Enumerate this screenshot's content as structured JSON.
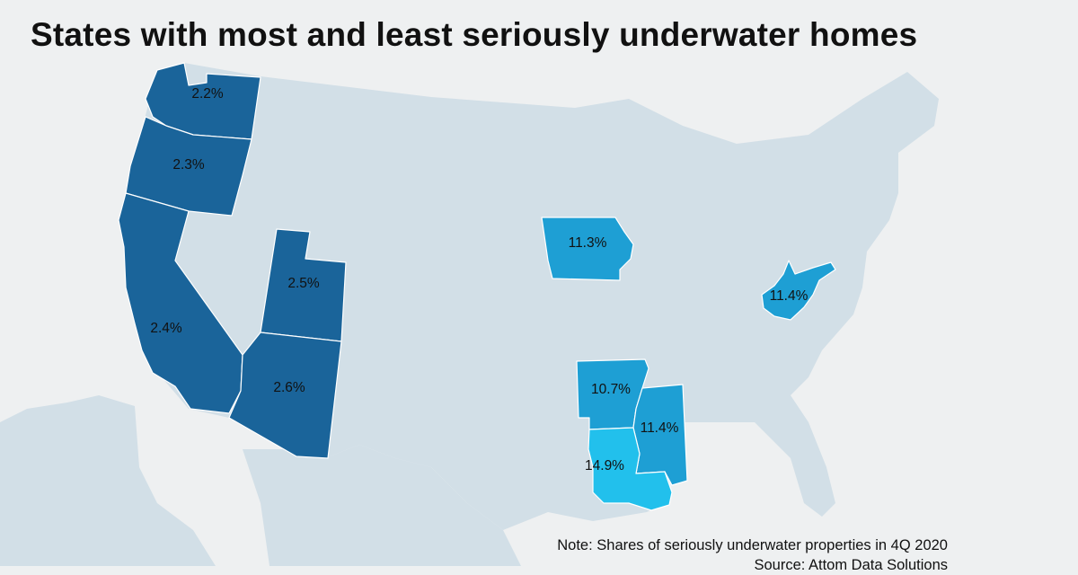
{
  "title": "States with most and least seriously underwater homes",
  "colors": {
    "background": "#eef0f1",
    "base_states": "#d2dfe7",
    "least_underwater": "#1a649a",
    "most_underwater": "#1e9fd4",
    "highest": "#22c0ec",
    "borders": "#ffffff"
  },
  "states": [
    {
      "name": "Washington",
      "value": "2.2%",
      "group": "least"
    },
    {
      "name": "Oregon",
      "value": "2.3%",
      "group": "least"
    },
    {
      "name": "California",
      "value": "2.4%",
      "group": "least"
    },
    {
      "name": "Utah",
      "value": "2.5%",
      "group": "least"
    },
    {
      "name": "Arizona",
      "value": "2.6%",
      "group": "least"
    },
    {
      "name": "Iowa",
      "value": "11.3%",
      "group": "most"
    },
    {
      "name": "West Virginia",
      "value": "11.4%",
      "group": "most"
    },
    {
      "name": "Arkansas",
      "value": "10.7%",
      "group": "most"
    },
    {
      "name": "Mississippi",
      "value": "11.4%",
      "group": "most"
    },
    {
      "name": "Louisiana",
      "value": "14.9%",
      "group": "highest"
    }
  ],
  "note": {
    "line1": "Note: Shares of seriously underwater properties in 4Q 2020",
    "line2": "Source: Attom Data Solutions"
  }
}
